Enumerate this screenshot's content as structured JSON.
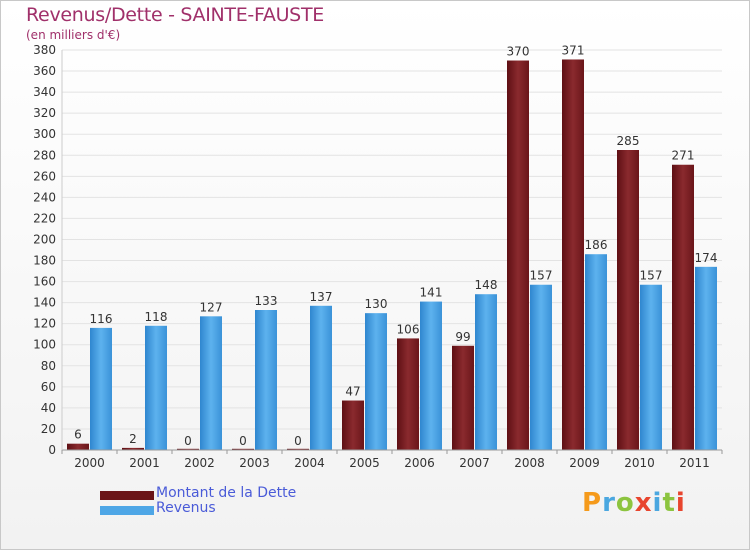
{
  "title": "Revenus/Dette - SAINTE-FAUSTE",
  "subtitle": "(en milliers d'€)",
  "chart_data": {
    "type": "bar",
    "categories": [
      "2000",
      "2001",
      "2002",
      "2003",
      "2004",
      "2005",
      "2006",
      "2007",
      "2008",
      "2009",
      "2010",
      "2011"
    ],
    "series": [
      {
        "name": "Montant de la Dette",
        "color": "#7a1f24",
        "values": [
          6,
          2,
          0,
          0,
          0,
          47,
          106,
          99,
          370,
          371,
          285,
          271
        ]
      },
      {
        "name": "Revenus",
        "color": "#4ea6e6",
        "values": [
          116,
          118,
          127,
          133,
          137,
          130,
          141,
          148,
          157,
          186,
          157,
          174
        ]
      }
    ],
    "ylim": [
      0,
      380
    ],
    "ytick_step": 20,
    "grid": true,
    "legend_position": "bottom-left"
  },
  "legend": {
    "debt_label": "Montant de la Dette",
    "revenue_label": "Revenus",
    "debt_color": "#6b1518",
    "revenue_color": "#4ea6e6"
  },
  "logo": {
    "text": "Proxiti",
    "colors": [
      "#f59a1b",
      "#4aa7e0",
      "#8cc43f",
      "#e8452e",
      "#4aa7e0",
      "#8cc43f",
      "#e8452e"
    ]
  }
}
